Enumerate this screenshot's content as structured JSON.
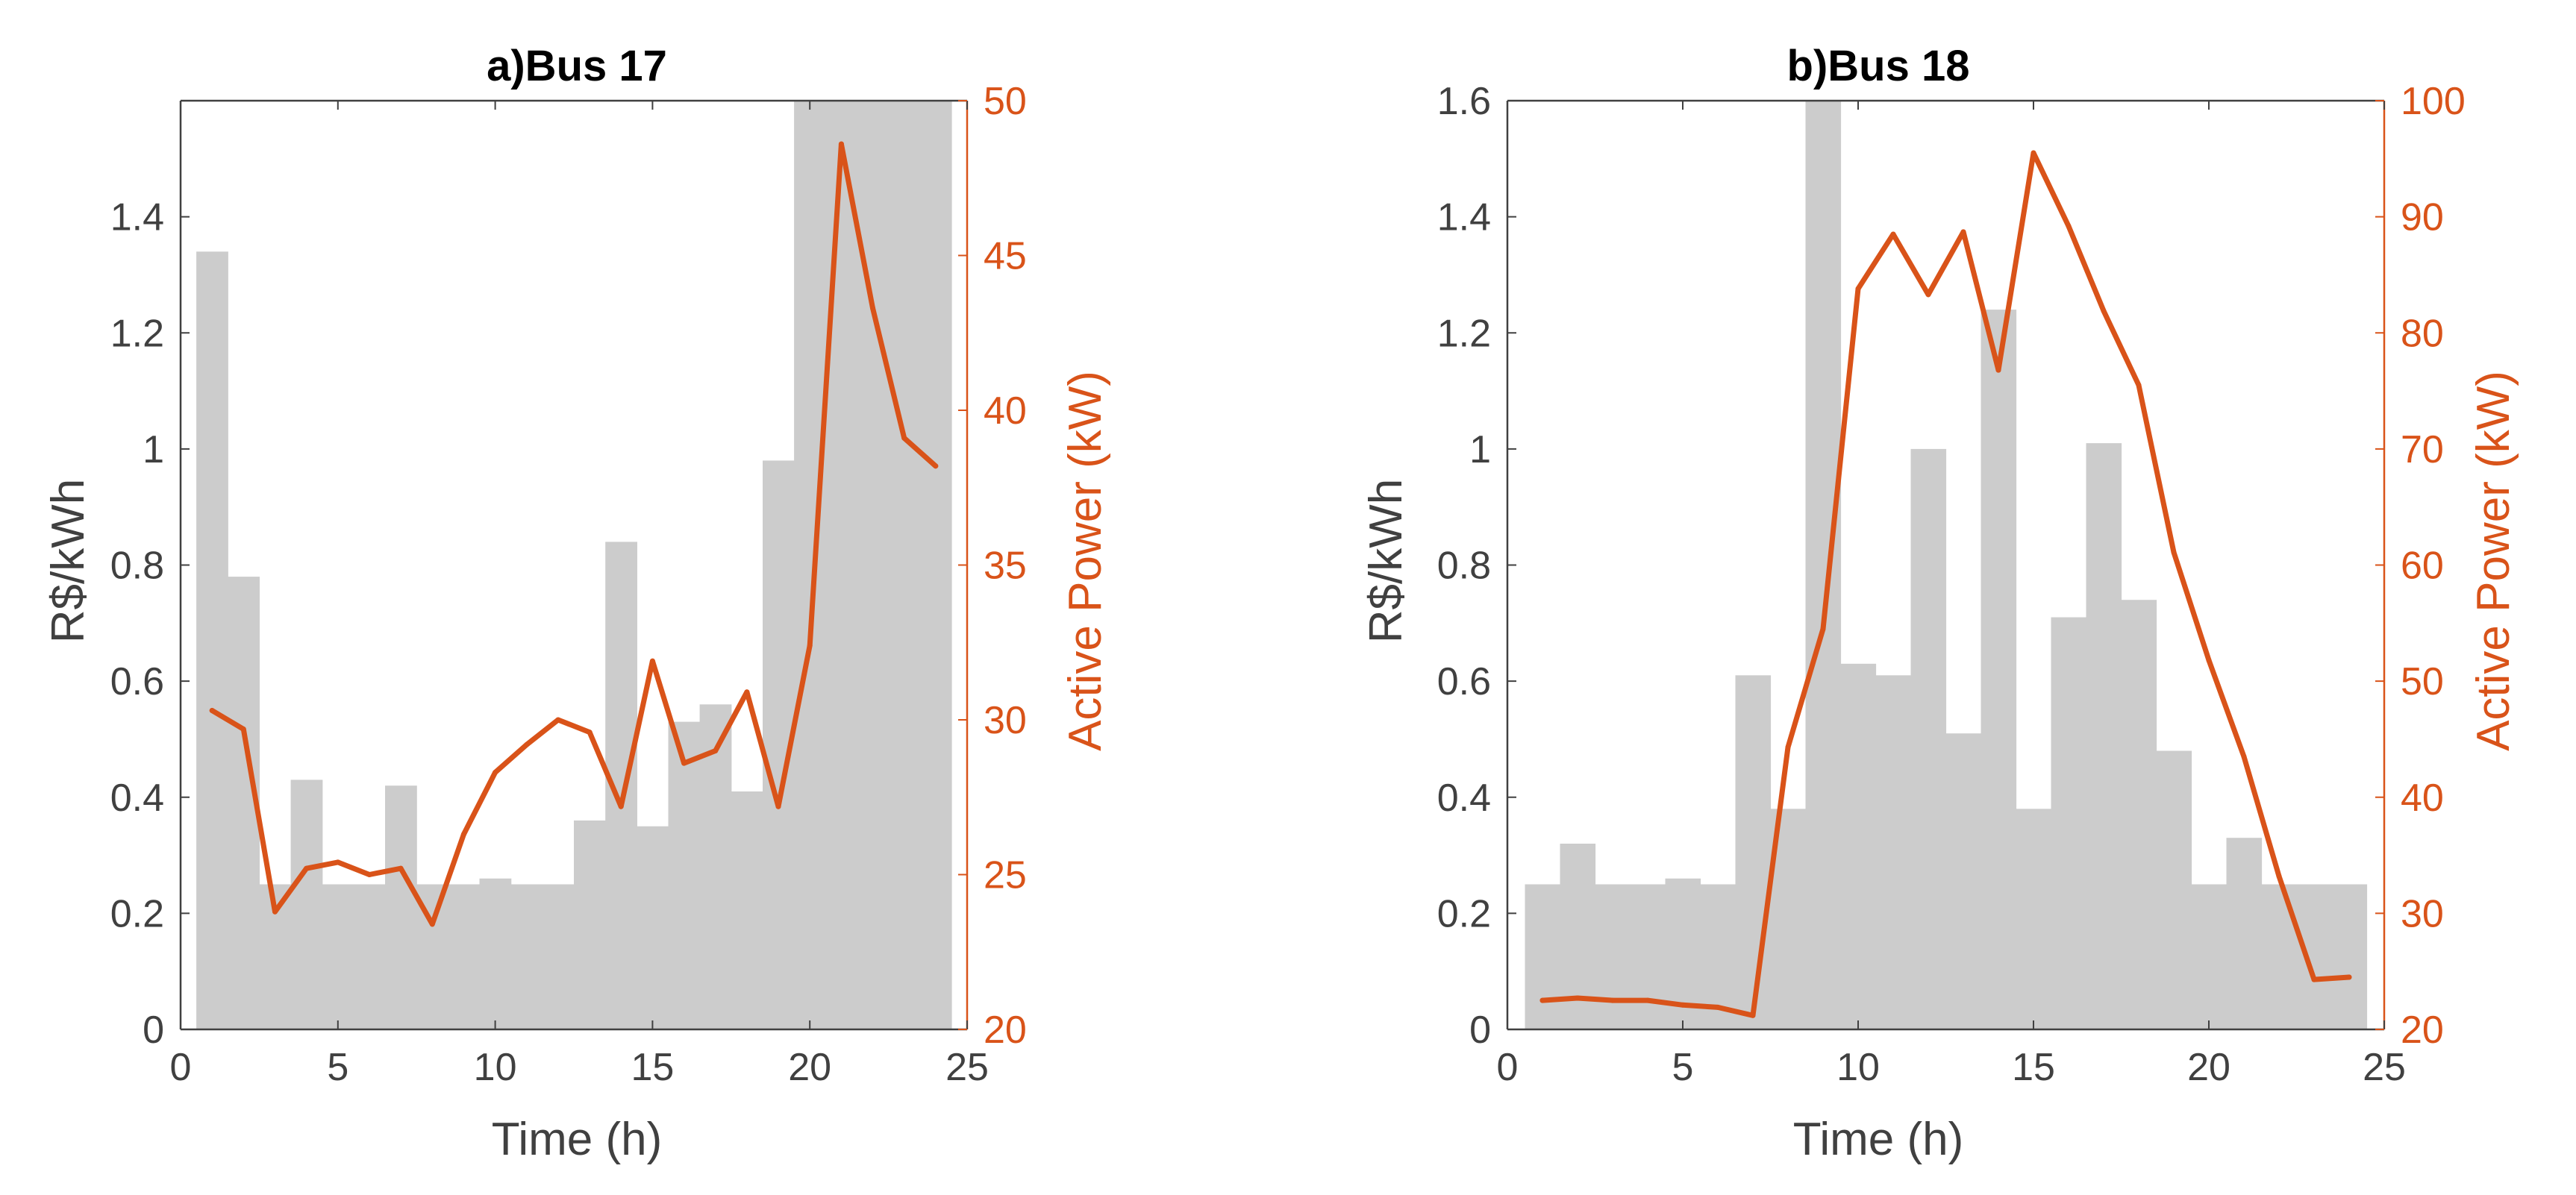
{
  "colors": {
    "bar": "#cccccc",
    "line": "#d95319",
    "left_axis": "#404040",
    "title": "#000000"
  },
  "chart_data": [
    {
      "type": "bar+line",
      "title": "a)Bus 17",
      "xlabel": "Time (h)",
      "ylabel": "R$/kWh",
      "y2label": "Active Power (kW)",
      "xlim": [
        0,
        25
      ],
      "ylim": [
        0,
        1.6
      ],
      "y2lim": [
        20,
        50
      ],
      "xticks": [
        "0",
        "5",
        "10",
        "15",
        "20",
        "25"
      ],
      "yticks": [
        "0",
        "0.2",
        "0.4",
        "0.6",
        "0.8",
        "1",
        "1.2",
        "1.4"
      ],
      "y2ticks": [
        "20",
        "25",
        "30",
        "35",
        "40",
        "45",
        "50"
      ],
      "grid": false,
      "bars": {
        "name": "",
        "x": [
          1,
          2,
          3,
          4,
          5,
          6,
          7,
          8,
          9,
          10,
          11,
          12,
          13,
          14,
          15,
          16,
          17,
          18,
          19,
          20,
          21,
          22,
          23,
          24
        ],
        "values": [
          1.34,
          0.78,
          0.25,
          0.43,
          0.25,
          0.25,
          0.42,
          0.25,
          0.25,
          0.26,
          0.25,
          0.25,
          0.36,
          0.84,
          0.35,
          0.53,
          0.56,
          0.41,
          0.98,
          1.6,
          1.6,
          1.6,
          1.6,
          1.6
        ]
      },
      "line": {
        "name": "",
        "x": [
          1,
          2,
          3,
          4,
          5,
          6,
          7,
          8,
          9,
          10,
          11,
          12,
          13,
          14,
          15,
          16,
          17,
          18,
          19,
          20,
          21,
          22,
          23,
          24
        ],
        "values": [
          30.3,
          29.7,
          23.8,
          25.2,
          25.4,
          25.0,
          25.2,
          23.4,
          26.3,
          28.3,
          29.2,
          30.0,
          29.6,
          27.2,
          31.9,
          28.6,
          29.0,
          30.9,
          27.2,
          32.4,
          48.6,
          43.3,
          39.1,
          38.2
        ]
      }
    },
    {
      "type": "bar+line",
      "title": "b)Bus 18",
      "xlabel": "Time (h)",
      "ylabel": "R$/kWh",
      "y2label": "Active Power (kW)",
      "xlim": [
        0,
        25
      ],
      "ylim": [
        0,
        1.6
      ],
      "y2lim": [
        20,
        100
      ],
      "xticks": [
        "0",
        "5",
        "10",
        "15",
        "20",
        "25"
      ],
      "yticks": [
        "0",
        "0.2",
        "0.4",
        "0.6",
        "0.8",
        "1",
        "1.2",
        "1.4",
        "1.6"
      ],
      "y2ticks": [
        "20",
        "30",
        "40",
        "50",
        "60",
        "70",
        "80",
        "90",
        "100"
      ],
      "grid": false,
      "bars": {
        "name": "",
        "x": [
          1,
          2,
          3,
          4,
          5,
          6,
          7,
          8,
          9,
          10,
          11,
          12,
          13,
          14,
          15,
          16,
          17,
          18,
          19,
          20,
          21,
          22,
          23,
          24
        ],
        "values": [
          0.25,
          0.32,
          0.25,
          0.25,
          0.26,
          0.25,
          0.61,
          0.38,
          1.6,
          0.63,
          0.61,
          1.0,
          0.51,
          1.24,
          0.38,
          0.71,
          1.01,
          0.74,
          0.48,
          0.25,
          0.33,
          0.25,
          0.25,
          0.25
        ]
      },
      "line": {
        "name": "",
        "x": [
          1,
          2,
          3,
          4,
          5,
          6,
          7,
          8,
          9,
          10,
          11,
          12,
          13,
          14,
          15,
          16,
          17,
          18,
          19,
          20,
          21,
          22,
          23,
          24
        ],
        "values": [
          22.5,
          22.7,
          22.5,
          22.5,
          22.1,
          21.9,
          21.2,
          44.3,
          54.5,
          83.8,
          88.5,
          83.3,
          88.7,
          76.8,
          95.5,
          89.2,
          81.9,
          75.5,
          61.1,
          51.8,
          43.5,
          33.2,
          24.3,
          24.5
        ]
      }
    }
  ]
}
